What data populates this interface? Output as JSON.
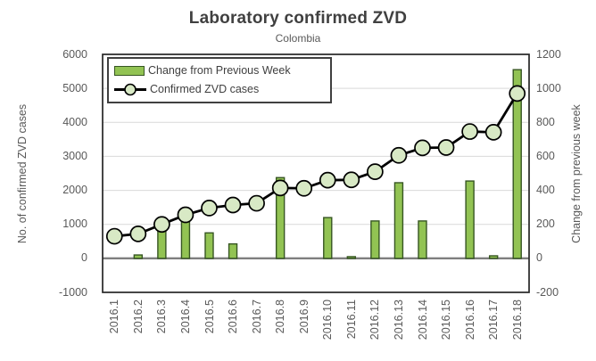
{
  "chart": {
    "title": "Laboratory confirmed ZVD",
    "subtitle": "Colombia"
  },
  "chart_data": {
    "type": "bar",
    "subtype": "combo-bar-line-dual-axis",
    "title": "Laboratory confirmed ZVD",
    "subtitle": "Colombia",
    "categories": [
      "2016.1",
      "2016.2",
      "2016.3",
      "2016.4",
      "2016.5",
      "2016.6",
      "2016.7",
      "2016.8",
      "2016.9",
      "2016.10",
      "2016.11",
      "2016.12",
      "2016.13",
      "2016.14",
      "2016.15",
      "2016.16",
      "2016.17",
      "2016.18"
    ],
    "series": [
      {
        "name": "Change from Previous Week",
        "type": "bar",
        "axis": "right",
        "values": [
          0,
          20,
          210,
          250,
          150,
          85,
          0,
          475,
          0,
          240,
          10,
          220,
          445,
          220,
          0,
          455,
          15,
          1110
        ]
      },
      {
        "name": "Confirmed ZVD cases",
        "type": "line",
        "axis": "left",
        "values": [
          650,
          720,
          1000,
          1280,
          1480,
          1570,
          1620,
          2070,
          2060,
          2300,
          2310,
          2550,
          3030,
          3250,
          3260,
          3730,
          3710,
          4850
        ]
      }
    ],
    "left_axis": {
      "title": "No. of confirmed ZVD cases",
      "min": -1000,
      "max": 6000,
      "ticks": [
        6000,
        5000,
        4000,
        3000,
        2000,
        1000,
        0,
        -1000
      ]
    },
    "right_axis": {
      "title": "Change from previous week",
      "min": -200,
      "max": 1200,
      "ticks": [
        1200,
        1000,
        800,
        600,
        400,
        200,
        0,
        -200
      ]
    },
    "grid": true,
    "legend_position": "top-left-inside"
  },
  "colors": {
    "bar_fill": "#92c353",
    "bar_border": "#375623",
    "marker_fill": "#d8e9c5",
    "line": "#000000",
    "grid": "#d9d9d9",
    "zero_line": "#7f7f7f",
    "plot_border": "#262626",
    "text": "#595959",
    "title": "#404040"
  }
}
